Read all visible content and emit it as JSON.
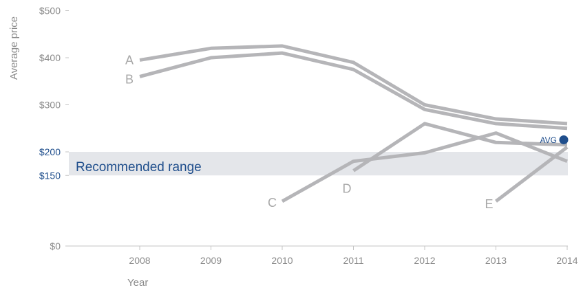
{
  "chart_data": {
    "type": "line",
    "title": "",
    "xlabel": "Year",
    "ylabel": "Average price",
    "x": [
      2008,
      2009,
      2010,
      2011,
      2012,
      2013,
      2014
    ],
    "x_tick_labels": [
      "2008",
      "2009",
      "2010",
      "2011",
      "2012",
      "2013",
      "2014"
    ],
    "y_ticks": [
      {
        "value": 0,
        "label": "$0",
        "accent": false
      },
      {
        "value": 150,
        "label": "$150",
        "accent": true
      },
      {
        "value": 200,
        "label": "$200",
        "accent": true
      },
      {
        "value": 300,
        "label": "$300",
        "accent": false
      },
      {
        "value": 400,
        "label": "$400",
        "accent": false
      },
      {
        "value": 500,
        "label": "$500",
        "accent": false
      }
    ],
    "ylim": [
      0,
      500
    ],
    "grid": false,
    "band": {
      "label": "Recommended range",
      "from": 150,
      "to": 200,
      "color": "#e4e6ea"
    },
    "series": [
      {
        "name": "A",
        "x": [
          2008,
          2009,
          2010,
          2011,
          2012,
          2013,
          2014
        ],
        "values": [
          395,
          420,
          425,
          390,
          300,
          270,
          260
        ]
      },
      {
        "name": "B",
        "x": [
          2008,
          2009,
          2010,
          2011,
          2012,
          2013,
          2014
        ],
        "values": [
          360,
          400,
          410,
          375,
          290,
          260,
          250
        ]
      },
      {
        "name": "C",
        "x": [
          2010,
          2011,
          2012,
          2013,
          2014
        ],
        "values": [
          95,
          180,
          198,
          240,
          180
        ]
      },
      {
        "name": "D",
        "x": [
          2011,
          2012,
          2013,
          2014
        ],
        "values": [
          160,
          260,
          220,
          215
        ]
      },
      {
        "name": "E",
        "x": [
          2013,
          2014
        ],
        "values": [
          95,
          210
        ]
      }
    ],
    "avg_marker": {
      "label": "AVG",
      "x": 2014,
      "value": 230,
      "color": "#1f4e8c"
    },
    "line_color": "#b5b5b8",
    "accent_color": "#1f4e8c"
  }
}
